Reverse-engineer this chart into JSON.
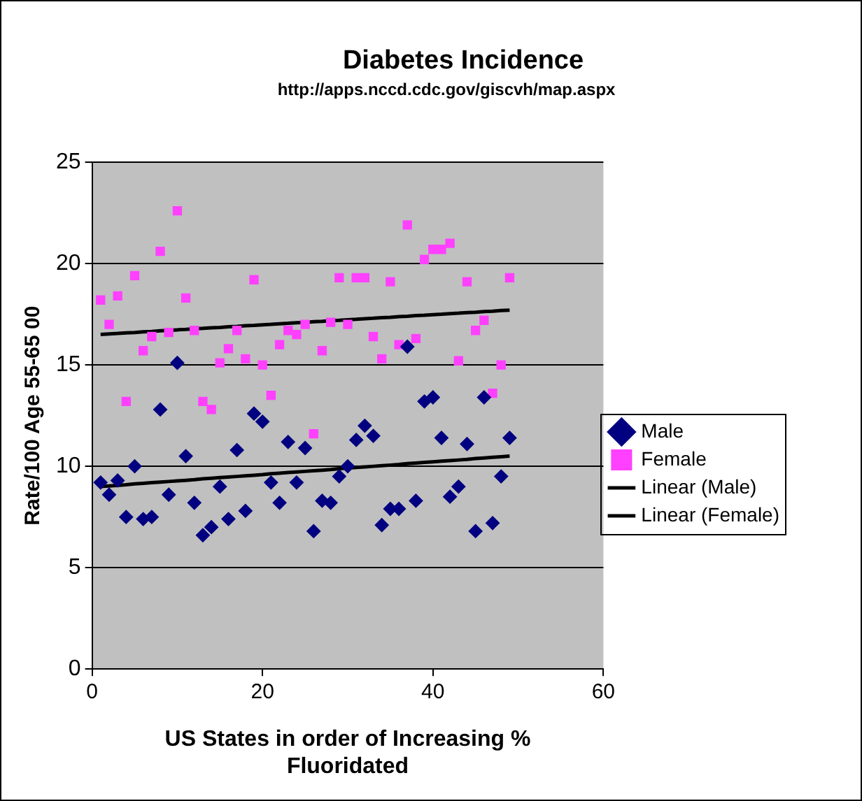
{
  "chart_data": {
    "type": "scatter",
    "title": "Diabetes Incidence",
    "subtitle": "http://apps.nccd.cdc.gov/giscvh/map.aspx",
    "xlabel": "US States in order of Increasing % Fluoridated",
    "ylabel": "Rate/100 Age 55-65 00",
    "x": [
      1,
      2,
      3,
      4,
      5,
      6,
      7,
      8,
      9,
      10,
      11,
      12,
      13,
      14,
      15,
      16,
      17,
      18,
      19,
      20,
      21,
      22,
      23,
      24,
      25,
      26,
      27,
      28,
      29,
      30,
      31,
      32,
      33,
      34,
      35,
      36,
      37,
      38,
      39,
      40,
      41,
      42,
      43,
      44,
      45,
      46,
      47,
      48,
      49
    ],
    "series": [
      {
        "name": "Male",
        "color": "#000080",
        "marker": "diamond",
        "values": [
          9.2,
          8.6,
          9.3,
          7.5,
          10.0,
          7.4,
          7.5,
          12.8,
          8.6,
          15.1,
          10.5,
          8.2,
          6.6,
          7.0,
          9.0,
          7.4,
          10.8,
          7.8,
          12.6,
          12.2,
          9.2,
          8.2,
          11.2,
          9.2,
          10.9,
          6.8,
          8.3,
          8.2,
          9.5,
          10.0,
          11.3,
          12.0,
          11.5,
          7.1,
          7.9,
          7.9,
          15.9,
          8.3,
          13.2,
          13.4,
          11.4,
          8.5,
          9.0,
          11.1,
          6.8,
          13.4,
          7.2,
          9.5,
          11.4
        ]
      },
      {
        "name": "Female",
        "color": "#ff40ff",
        "marker": "square",
        "values": [
          18.2,
          17.0,
          18.4,
          13.2,
          19.4,
          15.7,
          16.4,
          20.6,
          16.6,
          22.6,
          18.3,
          16.7,
          13.2,
          12.8,
          15.1,
          15.8,
          16.7,
          15.3,
          19.2,
          15.0,
          13.5,
          16.0,
          16.7,
          16.5,
          17.0,
          11.6,
          15.7,
          17.1,
          19.3,
          17.0,
          19.3,
          19.3,
          16.4,
          15.3,
          19.1,
          16.0,
          21.9,
          16.3,
          20.2,
          20.7,
          20.7,
          21.0,
          15.2,
          19.1,
          16.7,
          17.2,
          13.6,
          15.0,
          19.3
        ]
      },
      {
        "name": "Linear (Male)",
        "type": "line",
        "color": "#000000",
        "marker": "none",
        "values": [
          9.0,
          9.03,
          9.06,
          9.09,
          9.13,
          9.16,
          9.19,
          9.22,
          9.25,
          9.28,
          9.31,
          9.34,
          9.38,
          9.41,
          9.44,
          9.47,
          9.5,
          9.53,
          9.56,
          9.59,
          9.63,
          9.66,
          9.69,
          9.72,
          9.75,
          9.78,
          9.81,
          9.84,
          9.88,
          9.91,
          9.94,
          9.97,
          10.0,
          10.03,
          10.06,
          10.09,
          10.13,
          10.16,
          10.19,
          10.22,
          10.25,
          10.28,
          10.31,
          10.34,
          10.38,
          10.41,
          10.44,
          10.47,
          10.5
        ]
      },
      {
        "name": "Linear (Female)",
        "type": "line",
        "color": "#000000",
        "marker": "none",
        "values": [
          16.5,
          16.53,
          16.55,
          16.58,
          16.6,
          16.63,
          16.65,
          16.68,
          16.7,
          16.73,
          16.75,
          16.78,
          16.8,
          16.83,
          16.85,
          16.88,
          16.9,
          16.93,
          16.95,
          16.98,
          17.0,
          17.03,
          17.05,
          17.08,
          17.1,
          17.13,
          17.15,
          17.18,
          17.2,
          17.23,
          17.25,
          17.28,
          17.3,
          17.33,
          17.35,
          17.38,
          17.4,
          17.43,
          17.45,
          17.48,
          17.5,
          17.53,
          17.55,
          17.58,
          17.6,
          17.63,
          17.65,
          17.68,
          17.7
        ]
      }
    ],
    "xlim": [
      0,
      60
    ],
    "xticks": [
      0,
      20,
      40,
      60
    ],
    "ylim": [
      0,
      25
    ],
    "yticks": [
      0,
      5,
      10,
      15,
      20,
      25
    ],
    "grid": "y",
    "legend": "right"
  }
}
